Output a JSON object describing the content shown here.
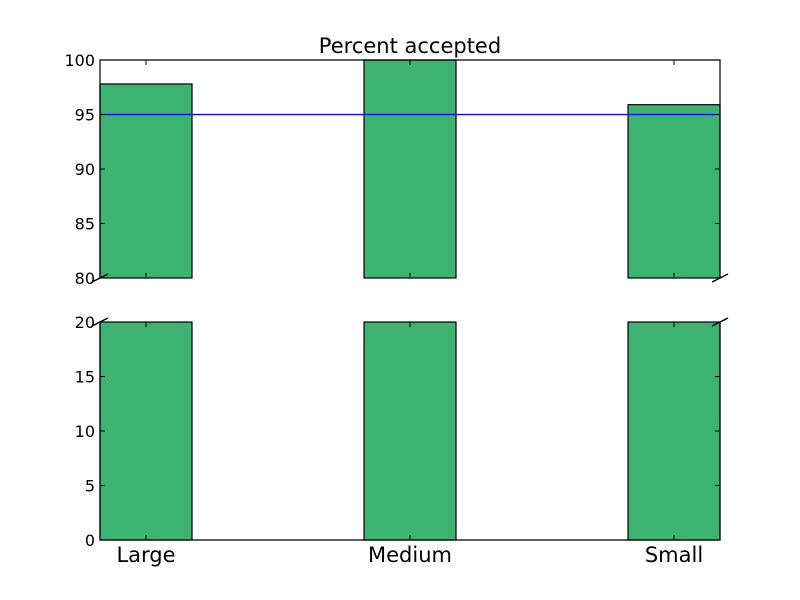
{
  "chart_data": {
    "type": "bar",
    "title": "Percent accepted",
    "xlabel": "",
    "ylabel": "",
    "categories": [
      "Large",
      "Medium",
      "Small"
    ],
    "values": [
      97.8,
      100,
      95.9
    ],
    "broken_y_axis": true,
    "upper_panel": {
      "ylim": [
        80,
        100
      ],
      "ticks": [
        "80",
        "85",
        "90",
        "95",
        "100"
      ]
    },
    "lower_panel": {
      "ylim": [
        0,
        20
      ],
      "ticks": [
        "0",
        "5",
        "10",
        "15",
        "20"
      ]
    },
    "reference_line": {
      "y": 95,
      "color": "#0000ff"
    },
    "bar_color": "#3cb371",
    "grid": false
  }
}
